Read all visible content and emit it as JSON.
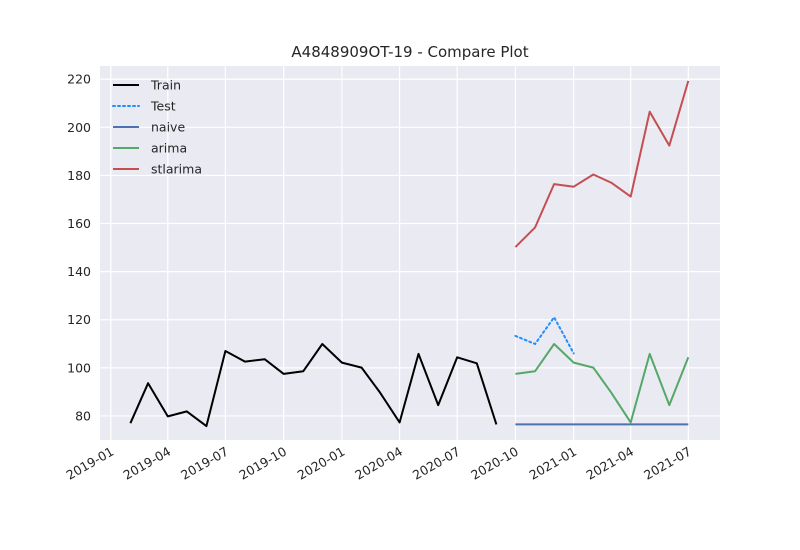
{
  "chart_data": {
    "type": "line",
    "title": "A4848909OT-19 - Compare Plot",
    "xlabel": "",
    "ylabel": "",
    "xlim": [
      "2018-12-15",
      "2021-08-20"
    ],
    "ylim": [
      70.0,
      225.5
    ],
    "x_ticks": [
      "2019-01",
      "2019-04",
      "2019-07",
      "2019-10",
      "2020-01",
      "2020-04",
      "2020-07",
      "2020-10",
      "2021-01",
      "2021-04",
      "2021-07"
    ],
    "y_ticks": [
      80,
      100,
      120,
      140,
      160,
      180,
      200,
      220
    ],
    "grid": true,
    "legend_position": "top-left",
    "series": [
      {
        "name": "Train",
        "color": "#000000",
        "style": "solid",
        "x": [
          "2019-02-01",
          "2019-03-01",
          "2019-04-01",
          "2019-05-01",
          "2019-06-01",
          "2019-07-01",
          "2019-08-01",
          "2019-09-01",
          "2019-10-01",
          "2019-11-01",
          "2019-12-01",
          "2020-01-01",
          "2020-02-01",
          "2020-03-01",
          "2020-04-01",
          "2020-05-01",
          "2020-06-01",
          "2020-07-01",
          "2020-08-01",
          "2020-09-01"
        ],
        "values": [
          77.0,
          93.6,
          79.8,
          81.9,
          75.8,
          107.0,
          102.6,
          103.6,
          97.5,
          98.6,
          109.9,
          102.2,
          100.1,
          89.8,
          77.3,
          105.8,
          84.5,
          104.4,
          101.9,
          76.5
        ]
      },
      {
        "name": "Test",
        "color": "#1e90ff",
        "style": "dotted",
        "x": [
          "2020-10-01",
          "2020-11-01",
          "2020-12-01",
          "2021-01-01"
        ],
        "values": [
          113.3,
          109.9,
          121.0,
          106.0
        ]
      },
      {
        "name": "naive",
        "color": "#4c72b0",
        "style": "solid",
        "x": [
          "2020-10-01",
          "2020-11-01",
          "2020-12-01",
          "2021-01-01",
          "2021-02-01",
          "2021-03-01",
          "2021-04-01",
          "2021-05-01",
          "2021-06-01",
          "2021-07-01"
        ],
        "values": [
          76.5,
          76.5,
          76.5,
          76.5,
          76.5,
          76.5,
          76.5,
          76.5,
          76.5,
          76.5
        ]
      },
      {
        "name": "arima",
        "color": "#55a868",
        "style": "solid",
        "x": [
          "2020-10-01",
          "2020-11-01",
          "2020-12-01",
          "2021-01-01",
          "2021-02-01",
          "2021-03-01",
          "2021-04-01",
          "2021-05-01",
          "2021-06-01",
          "2021-07-01"
        ],
        "values": [
          97.5,
          98.6,
          109.9,
          102.2,
          100.1,
          89.8,
          77.3,
          105.8,
          84.5,
          104.4
        ]
      },
      {
        "name": "stlarima",
        "color": "#c44e52",
        "style": "solid",
        "x": [
          "2020-10-01",
          "2020-11-01",
          "2020-12-01",
          "2021-01-01",
          "2021-02-01",
          "2021-03-01",
          "2021-04-01",
          "2021-05-01",
          "2021-06-01",
          "2021-07-01"
        ],
        "values": [
          150.2,
          158.4,
          176.4,
          175.3,
          180.4,
          177.0,
          171.2,
          206.5,
          192.4,
          219.3
        ]
      }
    ]
  }
}
